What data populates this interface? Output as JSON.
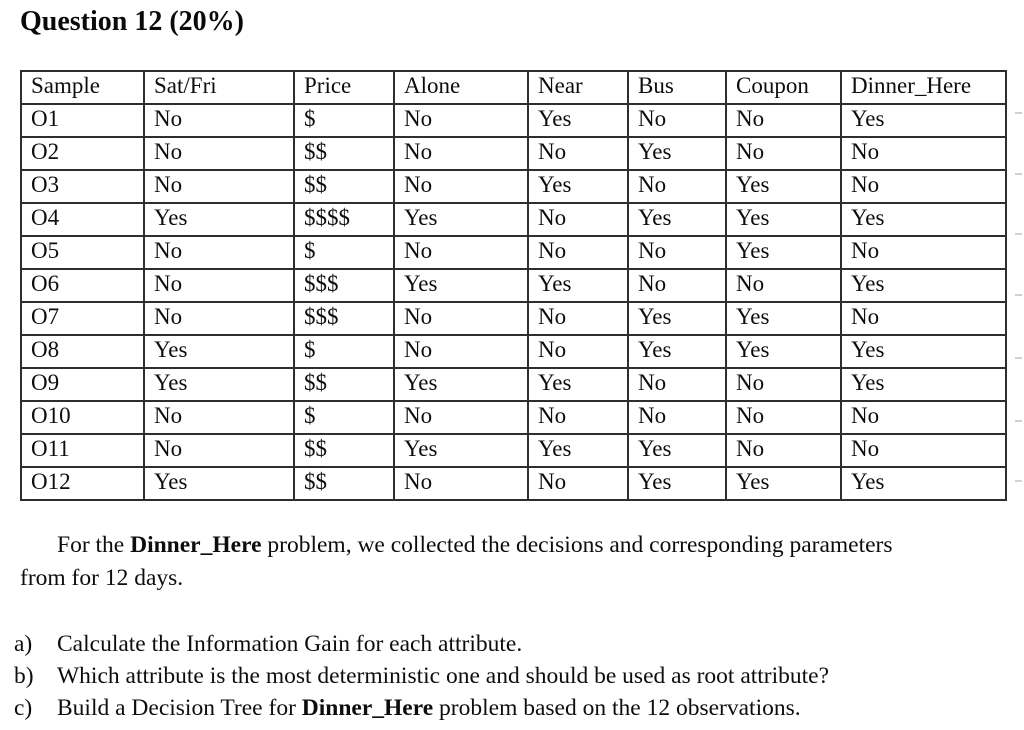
{
  "page_title": "Question 12 (20%)",
  "table": {
    "columns": [
      "Sample",
      "Sat/Fri",
      "Price",
      "Alone",
      "Near",
      "Bus",
      "Coupon",
      "Dinner_Here"
    ],
    "rows": [
      [
        "O1",
        "No",
        "$",
        "No",
        "Yes",
        "No",
        "No",
        "Yes"
      ],
      [
        "O2",
        "No",
        "$$",
        "No",
        "No",
        "Yes",
        "No",
        "No"
      ],
      [
        "O3",
        "No",
        "$$",
        "No",
        "Yes",
        "No",
        "Yes",
        "No"
      ],
      [
        "O4",
        "Yes",
        "$$$$",
        "Yes",
        "No",
        "Yes",
        "Yes",
        "Yes"
      ],
      [
        "O5",
        "No",
        "$",
        "No",
        "No",
        "No",
        "Yes",
        "No"
      ],
      [
        "O6",
        "No",
        "$$$",
        "Yes",
        "Yes",
        "No",
        "No",
        "Yes"
      ],
      [
        "O7",
        "No",
        "$$$",
        "No",
        "No",
        "Yes",
        "Yes",
        "No"
      ],
      [
        "O8",
        "Yes",
        "$",
        "No",
        "No",
        "Yes",
        "Yes",
        "Yes"
      ],
      [
        "O9",
        "Yes",
        "$$",
        "Yes",
        "Yes",
        "No",
        "No",
        "Yes"
      ],
      [
        "O10",
        "No",
        "$",
        "No",
        "No",
        "No",
        "No",
        "No"
      ],
      [
        "O11",
        "No",
        "$$",
        "Yes",
        "Yes",
        "Yes",
        "No",
        "No"
      ],
      [
        "O12",
        "Yes",
        "$$",
        "No",
        "No",
        "Yes",
        "Yes",
        "Yes"
      ]
    ]
  },
  "paragraph": {
    "pre": "For the ",
    "bold": "Dinner_Here",
    "post": " problem, we collected the decisions and corresponding parameters from for 12 days."
  },
  "questions": [
    {
      "marker": "a)",
      "pre": "Calculate the Information Gain for each attribute.",
      "bold": "",
      "post": ""
    },
    {
      "marker": "b)",
      "pre": "Which attribute is the most deterministic one and should be used as root attribute?",
      "bold": "",
      "post": ""
    },
    {
      "marker": "c)",
      "pre": "Build a Decision Tree for ",
      "bold": "Dinner_Here",
      "post": " problem based on the 12 observations."
    }
  ]
}
